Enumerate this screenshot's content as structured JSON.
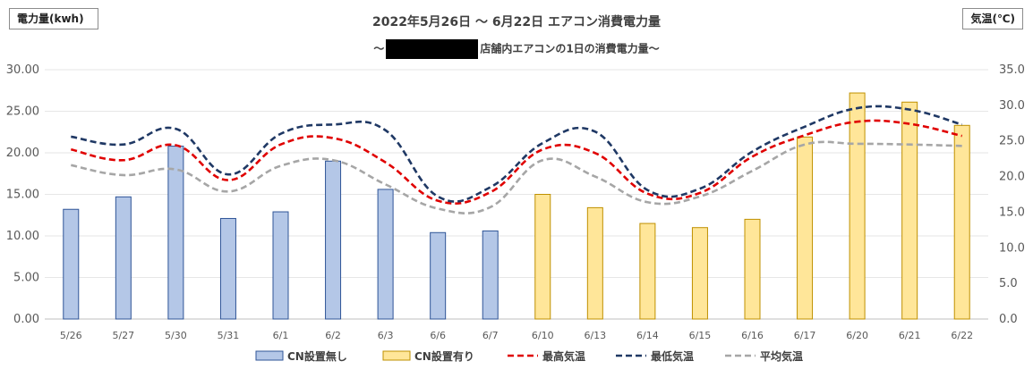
{
  "chart_data": {
    "type": "bar",
    "title": "2022年5月26日 ～ 6月22日 エアコン消費電力量",
    "subtitle_prefix": "～",
    "subtitle_suffix": "店舗内エアコンの1日の消費電力量～",
    "ylabel": "電力量(kwh)",
    "y2label": "気温(℃)",
    "ylim": [
      0,
      30
    ],
    "y_ticks": [
      "0.00",
      "5.00",
      "10.00",
      "15.00",
      "20.00",
      "25.00",
      "30.00"
    ],
    "y2lim": [
      0,
      35
    ],
    "y2_ticks": [
      "0.0",
      "5.0",
      "10.0",
      "15.0",
      "20.0",
      "25.0",
      "30.0",
      "35.0"
    ],
    "grid": true,
    "legend_position": "bottom",
    "categories": [
      "5/26",
      "5/27",
      "5/30",
      "5/31",
      "6/1",
      "6/2",
      "6/3",
      "6/6",
      "6/7",
      "6/10",
      "6/13",
      "6/14",
      "6/15",
      "6/16",
      "6/17",
      "6/20",
      "6/21",
      "6/22"
    ],
    "series": [
      {
        "name": "CN設置無し",
        "kind": "bar",
        "axis": "left",
        "color": "#b4c7e7",
        "edge": "#2f5597",
        "values": [
          13.2,
          14.7,
          20.8,
          12.1,
          12.9,
          19.0,
          15.6,
          10.4,
          10.6,
          null,
          null,
          null,
          null,
          null,
          null,
          null,
          null,
          null
        ]
      },
      {
        "name": "CN設置有り",
        "kind": "bar",
        "axis": "left",
        "color": "#ffe699",
        "edge": "#bf9000",
        "values": [
          null,
          null,
          null,
          null,
          null,
          null,
          null,
          null,
          null,
          15.0,
          13.4,
          11.5,
          11.0,
          12.0,
          21.9,
          27.2,
          26.1,
          23.3
        ]
      },
      {
        "name": "最高気温",
        "kind": "line",
        "axis": "right",
        "color": "#e00000",
        "values": [
          23.8,
          22.3,
          24.4,
          19.5,
          24.5,
          25.4,
          22.0,
          16.6,
          17.8,
          23.8,
          23.3,
          17.6,
          17.7,
          22.8,
          25.8,
          27.7,
          27.4,
          25.7
        ]
      },
      {
        "name": "最低気温",
        "kind": "line",
        "axis": "right",
        "color": "#1f3864",
        "values": [
          25.6,
          24.5,
          26.7,
          20.3,
          26.0,
          27.3,
          26.5,
          17.2,
          18.5,
          24.7,
          26.3,
          18.1,
          18.3,
          23.5,
          27.0,
          29.6,
          29.4,
          27.3
        ]
      },
      {
        "name": "平均気温",
        "kind": "line",
        "axis": "right",
        "color": "#a6a6a6",
        "values": [
          21.6,
          20.2,
          21.0,
          17.9,
          21.5,
          22.3,
          18.9,
          15.5,
          15.7,
          22.3,
          20.0,
          16.4,
          17.2,
          20.8,
          24.5,
          24.6,
          24.5,
          24.3
        ]
      }
    ]
  }
}
